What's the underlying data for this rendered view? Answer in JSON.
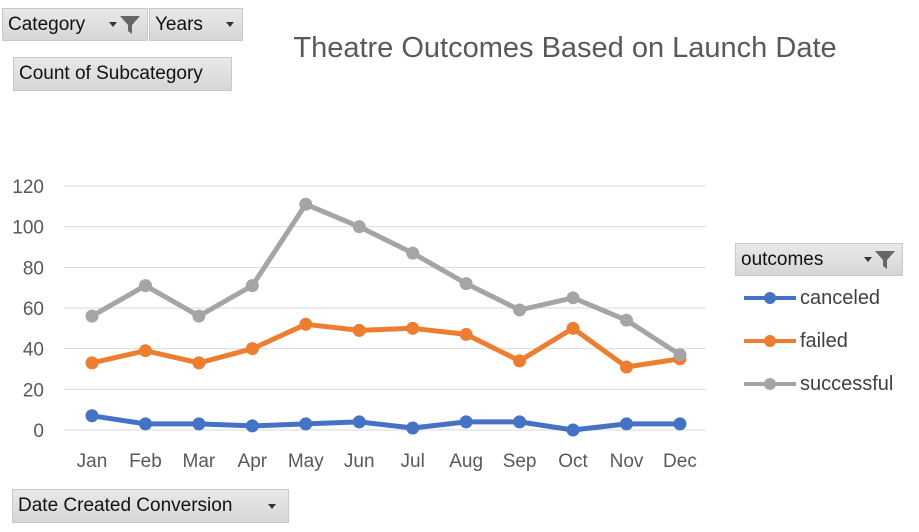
{
  "pivot": {
    "filter_category": "Category",
    "filter_years": "Years",
    "values_field": "Count of Subcategory",
    "axis_field": "Date Created Conversion",
    "legend_field": "outcomes"
  },
  "colors": {
    "canceled": "#4472c4",
    "failed": "#ed7d31",
    "successful": "#a5a5a5",
    "grid": "#d9d9d9"
  },
  "chart_data": {
    "type": "line",
    "title": "Theatre Outcomes Based on Launch Date",
    "categories": [
      "Jan",
      "Feb",
      "Mar",
      "Apr",
      "May",
      "Jun",
      "Jul",
      "Aug",
      "Sep",
      "Oct",
      "Nov",
      "Dec"
    ],
    "series": [
      {
        "name": "canceled",
        "values": [
          7,
          3,
          3,
          2,
          3,
          4,
          1,
          4,
          4,
          0,
          3,
          3
        ]
      },
      {
        "name": "failed",
        "values": [
          33,
          39,
          33,
          40,
          52,
          49,
          50,
          47,
          34,
          50,
          31,
          35
        ]
      },
      {
        "name": "successful",
        "values": [
          56,
          71,
          56,
          71,
          111,
          100,
          87,
          72,
          59,
          65,
          54,
          37
        ]
      }
    ],
    "ylim": [
      0,
      120
    ],
    "yticks": [
      0,
      20,
      40,
      60,
      80,
      100,
      120
    ],
    "grid": true,
    "legend_position": "right"
  }
}
